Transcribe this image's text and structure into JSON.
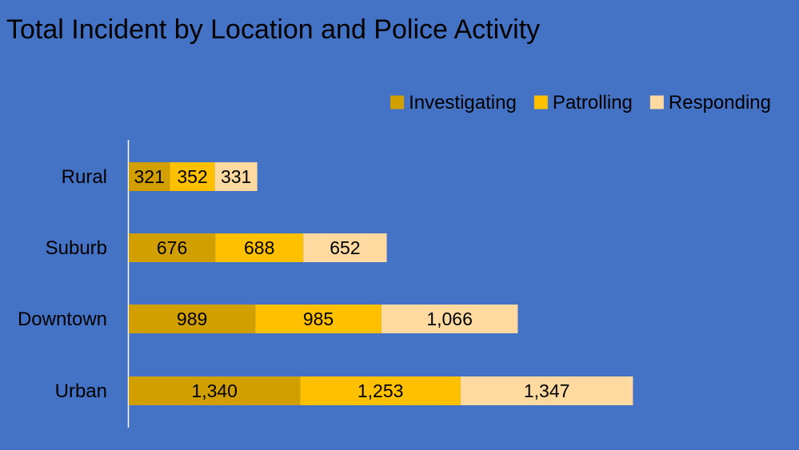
{
  "chart_data": {
    "type": "bar",
    "orientation": "horizontal",
    "stacked": true,
    "title": "Total Incident by Location and Police Activity",
    "xlabel": "",
    "ylabel": "",
    "categories": [
      "Rural",
      "Suburb",
      "Downtown",
      "Urban"
    ],
    "series": [
      {
        "name": "Investigating",
        "color": "#d1a000",
        "values": [
          321,
          676,
          989,
          1340
        ],
        "labels": [
          "321",
          "676",
          "989",
          "1,340"
        ]
      },
      {
        "name": "Patrolling",
        "color": "#ffc000",
        "values": [
          352,
          688,
          985,
          1253
        ],
        "labels": [
          "352",
          "688",
          "985",
          "1,253"
        ]
      },
      {
        "name": "Responding",
        "color": "#ffdaa0",
        "values": [
          331,
          652,
          1066,
          1347
        ],
        "labels": [
          "331",
          "652",
          "1,066",
          "1,347"
        ]
      }
    ],
    "xlim": [
      0,
      4500
    ],
    "grid": false,
    "legend_position": "top-right",
    "background_color": "#4472c4",
    "axis_color": "#ffffff"
  }
}
